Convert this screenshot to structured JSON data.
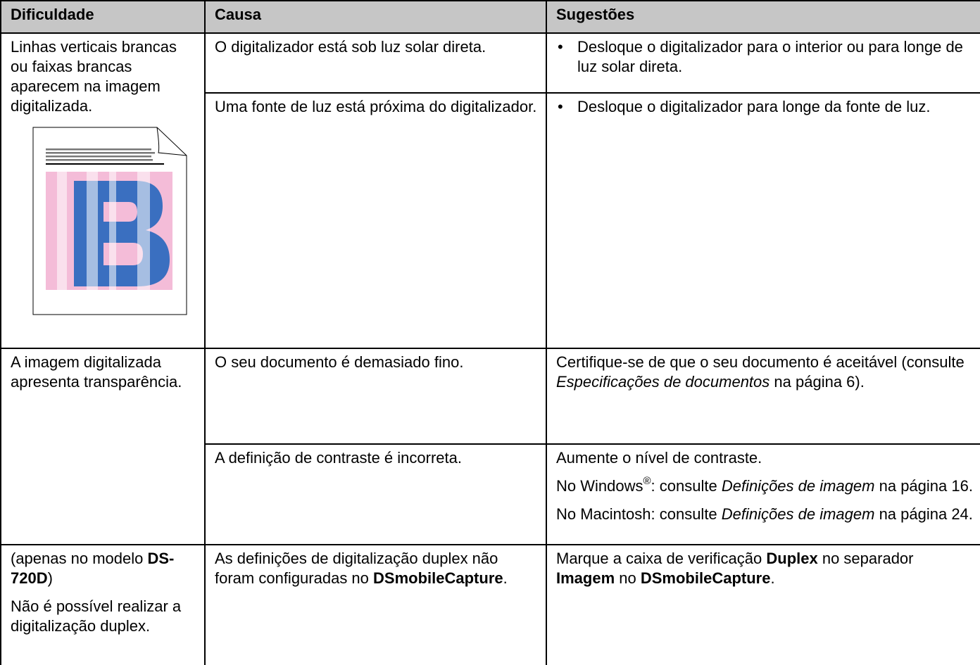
{
  "table": {
    "header": [
      "Dificuldade",
      "Causa",
      "Sugestões"
    ],
    "rows": [
      {
        "problem": [
          {
            "runs": [
              {
                "text": "Linhas verticais brancas ou faixas brancas aparecem na imagem digitalizada."
              }
            ]
          }
        ],
        "causes": [
          {
            "cause": [
              {
                "runs": [
                  {
                    "text": "O digitalizador está sob luz solar direta."
                  }
                ]
              }
            ],
            "suggestions": [
              {
                "bullet": "•",
                "runs": [
                  {
                    "text": "Desloque o digitalizador para o interior ou para longe de luz solar direta."
                  }
                ]
              }
            ]
          },
          {
            "cause": [
              {
                "runs": [
                  {
                    "text": "Uma fonte de luz está próxima do digitalizador."
                  }
                ]
              }
            ],
            "suggestions": [
              {
                "bullet": "•",
                "runs": [
                  {
                    "text": "Desloque o digitalizador para longe da fonte de luz."
                  }
                ]
              }
            ]
          }
        ]
      },
      {
        "problem": [
          {
            "runs": [
              {
                "text": "A imagem digitalizada apresenta transparência."
              }
            ]
          }
        ],
        "causes": [
          {
            "cause": [
              {
                "runs": [
                  {
                    "text": "O seu documento é demasiado fino."
                  }
                ]
              }
            ],
            "suggestions": [
              {
                "runs": [
                  {
                    "text": "Certifique-se de que o seu documento é aceitável (consulte "
                  },
                  {
                    "text": "Especificações de documentos",
                    "style": "italic"
                  },
                  {
                    "text": " na página 6)."
                  }
                ]
              }
            ]
          },
          {
            "cause": [
              {
                "runs": [
                  {
                    "text": "A definição de contraste é incorreta."
                  }
                ]
              }
            ],
            "suggestions": [
              {
                "runs": [
                  {
                    "text": "Aumente o nível de contraste."
                  }
                ]
              },
              {
                "runs": [
                  {
                    "text": "No Windows"
                  },
                  {
                    "text": "®",
                    "style": "sup"
                  },
                  {
                    "text": ": consulte "
                  },
                  {
                    "text": "Definições de imagem",
                    "style": "italic"
                  },
                  {
                    "text": " na página 16."
                  }
                ]
              },
              {
                "runs": [
                  {
                    "text": "No Macintosh: consulte "
                  },
                  {
                    "text": "Definições de imagem",
                    "style": "italic"
                  },
                  {
                    "text": " na página 24."
                  }
                ]
              }
            ]
          }
        ]
      },
      {
        "problem": [
          {
            "runs": [
              {
                "text": "(apenas no modelo "
              },
              {
                "text": "DS-720D",
                "style": "bold"
              },
              {
                "text": ")"
              }
            ]
          },
          {
            "runs": [
              {
                "text": "Não é possível realizar a digitalização duplex."
              }
            ]
          }
        ],
        "causes": [
          {
            "cause": [
              {
                "runs": [
                  {
                    "text": "As definições de digitalização duplex não foram configuradas no "
                  },
                  {
                    "text": "DSmobileCapture",
                    "style": "bold"
                  },
                  {
                    "text": "."
                  }
                ]
              }
            ],
            "suggestions": [
              {
                "runs": [
                  {
                    "text": "Marque a caixa de verificação "
                  },
                  {
                    "text": "Duplex",
                    "style": "bold"
                  },
                  {
                    "text": " no separador "
                  },
                  {
                    "text": "Imagem",
                    "style": "bold"
                  },
                  {
                    "text": " no "
                  },
                  {
                    "text": "DSmobileCapture",
                    "style": "bold"
                  },
                  {
                    "text": "."
                  }
                ]
              }
            ]
          }
        ]
      }
    ]
  }
}
